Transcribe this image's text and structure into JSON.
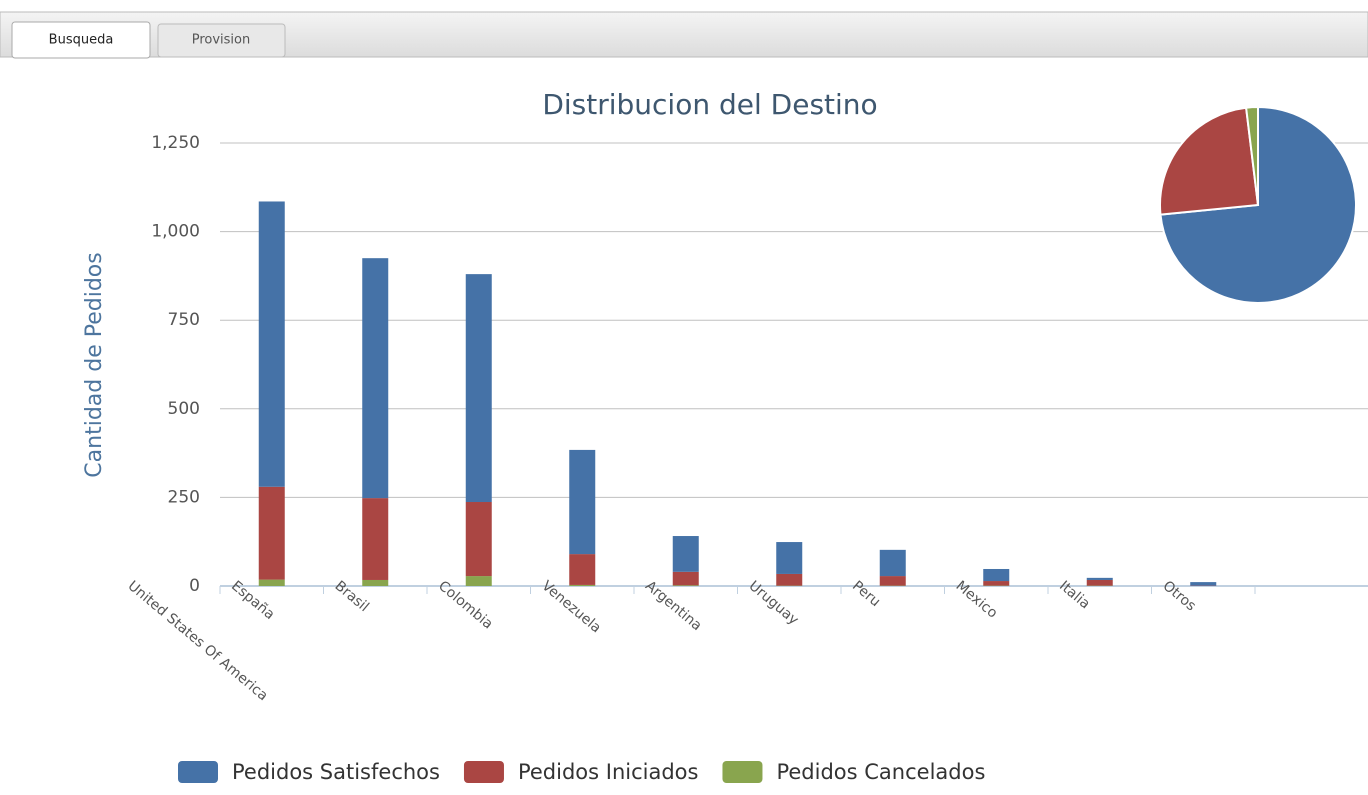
{
  "tabs": [
    "Busqueda",
    "Provision"
  ],
  "chart_data": [
    {
      "type": "bar",
      "stacked": true,
      "title": "Distribucion del Destino",
      "y_label": "Cantidad de Pedidos",
      "categories": [
        "United States Of America",
        "España",
        "Brasil",
        "Colombia",
        "Venezuela",
        "Argentina",
        "Uruguay",
        "Peru",
        "Mexico",
        "Italia",
        "Otros"
      ],
      "series": [
        {
          "name": "Pedidos Satisfechos",
          "color": "#4572A7",
          "values": [
            805,
            677,
            643,
            294,
            101,
            90,
            74,
            34,
            6,
            10,
            null
          ]
        },
        {
          "name": "Pedidos Iniciados",
          "color": "#AA4643",
          "values": [
            262,
            231,
            209,
            87,
            38,
            33,
            27,
            13,
            16,
            1,
            null
          ]
        },
        {
          "name": "Pedidos Cancelados",
          "color": "#89A54E",
          "values": [
            18,
            17,
            28,
            3,
            2,
            1,
            1,
            1,
            1,
            0,
            null
          ]
        }
      ],
      "ylim": [
        0,
        1250
      ],
      "yticks": [
        0,
        250,
        500,
        750,
        {
          "value": 1000,
          "label": "1,000"
        },
        {
          "value": 1250,
          "label": "1,250"
        }
      ],
      "grid": true,
      "legend": "bottom"
    },
    {
      "type": "pie",
      "values": [
        2734,
        917,
        72
      ],
      "colors": [
        "#4572A7",
        "#AA4643",
        "#89A54E"
      ]
    }
  ]
}
